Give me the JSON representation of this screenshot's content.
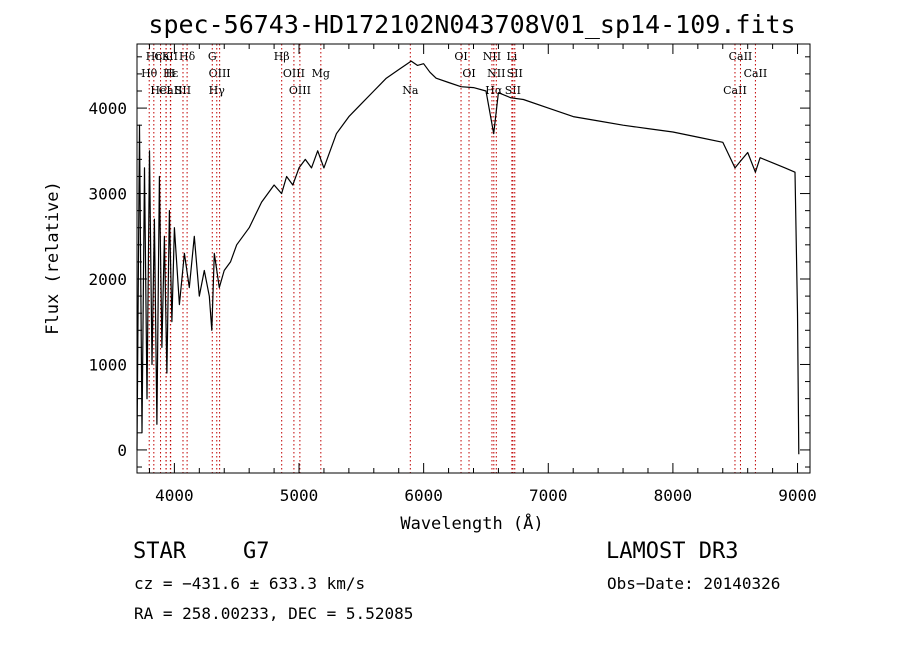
{
  "chart_data": {
    "type": "line",
    "title": "spec-56743-HD172102N043708V01_sp14-109.fits",
    "xlabel": "Wavelength (Å)",
    "ylabel": "Flux (relative)",
    "xlim": [
      3700,
      9100
    ],
    "ylim": [
      -270,
      4750
    ],
    "xticks": [
      4000,
      5000,
      6000,
      7000,
      8000,
      9000
    ],
    "yticks": [
      0,
      1000,
      2000,
      3000,
      4000
    ],
    "grid": false,
    "line_color": "#000000",
    "marker_color": "#c00000",
    "series": [
      {
        "x": [
          3700,
          3720,
          3740,
          3760,
          3780,
          3800,
          3820,
          3840,
          3860,
          3880,
          3900,
          3920,
          3940,
          3960,
          3980,
          4000,
          4040,
          4080,
          4120,
          4160,
          4200,
          4240,
          4280,
          4300,
          4320,
          4360,
          4400,
          4450,
          4500,
          4600,
          4700,
          4800,
          4860,
          4900,
          4950,
          5000,
          5050,
          5100,
          5150,
          5200,
          5300,
          5400,
          5500,
          5600,
          5700,
          5800,
          5900,
          5950,
          6000,
          6050,
          6100,
          6200,
          6300,
          6400,
          6500,
          6562,
          6600,
          6700,
          6800,
          7000,
          7200,
          7400,
          7600,
          7800,
          8000,
          8200,
          8400,
          8498,
          8542,
          8600,
          8662,
          8700,
          8800,
          8900,
          8980,
          9000,
          9010
        ],
        "y": [
          0,
          3800,
          200,
          3300,
          600,
          3500,
          1000,
          2700,
          300,
          3200,
          1200,
          2500,
          900,
          2800,
          1500,
          2600,
          1700,
          2300,
          1900,
          2500,
          1800,
          2100,
          1800,
          1400,
          2300,
          1900,
          2100,
          2200,
          2400,
          2600,
          2900,
          3100,
          3000,
          3200,
          3100,
          3300,
          3400,
          3300,
          3500,
          3300,
          3700,
          3900,
          4050,
          4200,
          4350,
          4450,
          4550,
          4500,
          4520,
          4420,
          4350,
          4300,
          4250,
          4240,
          4200,
          3700,
          4180,
          4120,
          4100,
          4000,
          3900,
          3850,
          3800,
          3760,
          3720,
          3660,
          3600,
          3300,
          3380,
          3480,
          3250,
          3420,
          3360,
          3300,
          3250,
          1600,
          -50
        ]
      }
    ],
    "annotations": [
      {
        "label": "CaII",
        "x": 3934
      },
      {
        "label": "Hθ",
        "x": 3798
      },
      {
        "label": "CaII",
        "x": 3969
      },
      {
        "label": "Hη",
        "x": 3835
      },
      {
        "label": "Hε",
        "x": 3970
      },
      {
        "label": "HeI",
        "x": 3889
      },
      {
        "label": "K",
        "x": 3933
      },
      {
        "label": "H",
        "x": 3968
      },
      {
        "label": "SII",
        "x": 4069
      },
      {
        "label": "Hδ",
        "x": 4102
      },
      {
        "label": "OIII",
        "x": 4363
      },
      {
        "label": "Hγ",
        "x": 4340
      },
      {
        "label": "G",
        "x": 4304
      },
      {
        "label": "OIII",
        "x": 4959
      },
      {
        "label": "OIII",
        "x": 5007
      },
      {
        "label": "Hβ",
        "x": 4861
      },
      {
        "label": "Mg",
        "x": 5175
      },
      {
        "label": "Na",
        "x": 5893
      },
      {
        "label": "OI",
        "x": 6300
      },
      {
        "label": "OI",
        "x": 6364
      },
      {
        "label": "Hα",
        "x": 6563
      },
      {
        "label": "NII",
        "x": 6548
      },
      {
        "label": "NII",
        "x": 6583
      },
      {
        "label": "SII",
        "x": 6716
      },
      {
        "label": "Li",
        "x": 6708
      },
      {
        "label": "SII",
        "x": 6731
      },
      {
        "label": "CaII",
        "x": 8498
      },
      {
        "label": "CaII",
        "x": 8542
      },
      {
        "label": "CaII",
        "x": 8662
      }
    ]
  },
  "info": {
    "object_type": "STAR",
    "subclass": "G7",
    "survey": "LAMOST DR3",
    "redshift_text": "cz = −431.6 ± 633.3 km/s",
    "obs_date_text": "Obs−Date: 20140326",
    "coords_text": "RA = 258.00233, DEC =   5.52085"
  }
}
